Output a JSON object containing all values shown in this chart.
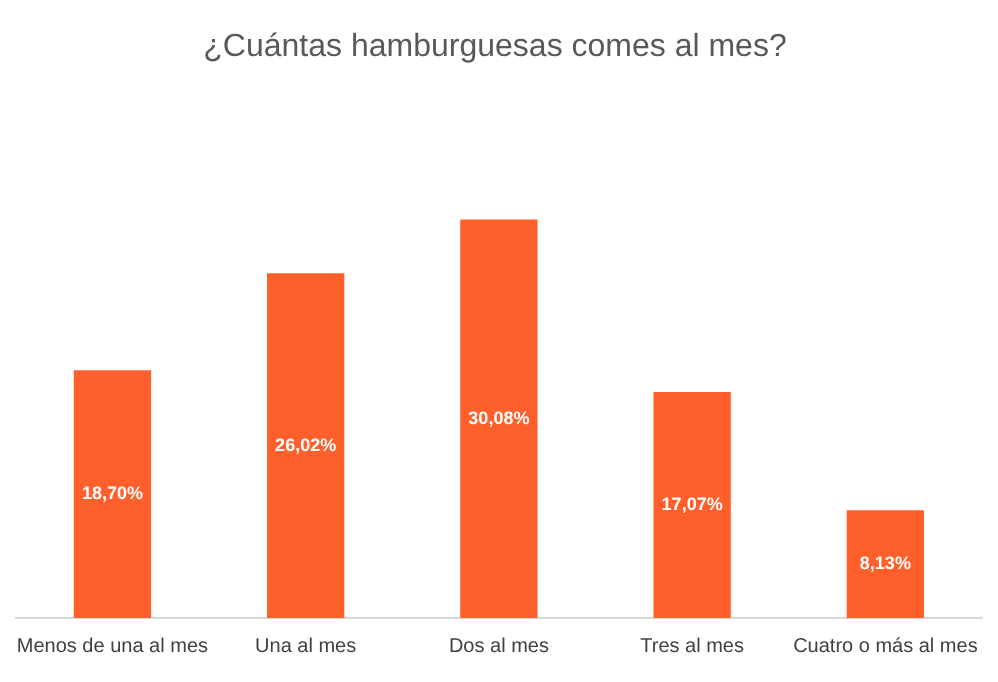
{
  "chart_data": {
    "type": "bar",
    "title": "¿Cuántas hamburguesas comes al mes?",
    "categories": [
      "Menos de una al mes",
      "Una al mes",
      "Dos al mes",
      "Tres al mes",
      "Cuatro o más al mes"
    ],
    "values": [
      18.7,
      26.02,
      30.08,
      17.07,
      8.13
    ],
    "value_labels": [
      "18,70%",
      "26,02%",
      "30,08%",
      "17,07%",
      "8,13%"
    ],
    "color": "#ff5f2a",
    "grid": false,
    "legend": false,
    "tick_labels": "x"
  }
}
